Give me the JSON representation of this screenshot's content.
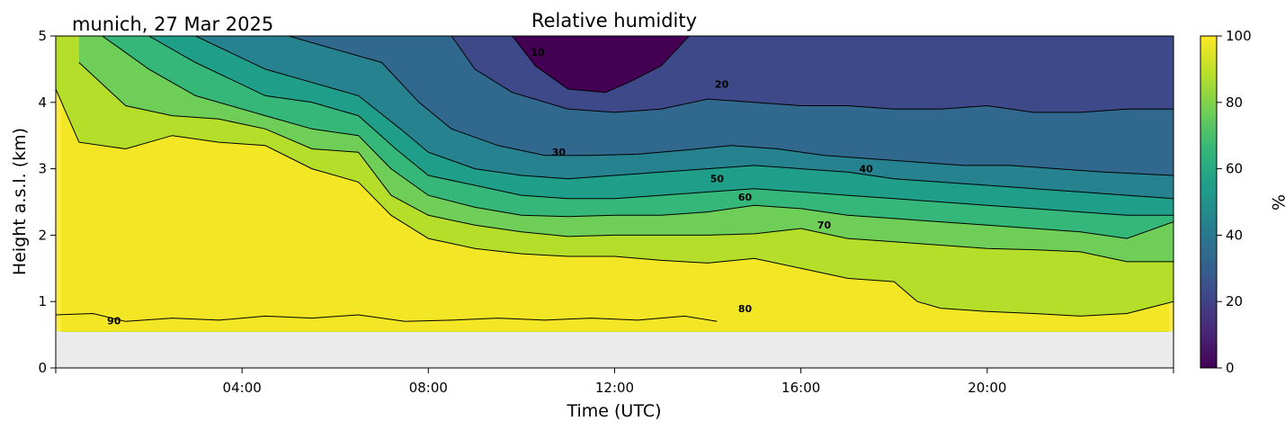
{
  "chart_data": {
    "type": "heatmap",
    "title": "Relative humidity",
    "subtitle": "munich, 27 Mar 2025",
    "xlabel": "Time (UTC)",
    "ylabel": "Height a.s.l. (km)",
    "xlim_hours": [
      0,
      24
    ],
    "ylim": [
      0,
      5
    ],
    "x_ticks": [
      "04:00",
      "08:00",
      "12:00",
      "16:00",
      "20:00"
    ],
    "x_tick_hours": [
      4,
      8,
      12,
      16,
      20
    ],
    "y_ticks": [
      "0",
      "1",
      "2",
      "3",
      "4",
      "5"
    ],
    "no_data_below_km": 0.55,
    "colorbar": {
      "label": "%",
      "range": [
        0,
        100
      ],
      "ticks": [
        "0",
        "20",
        "40",
        "60",
        "80",
        "100"
      ],
      "colormap": [
        "#440154",
        "#482878",
        "#3e4989",
        "#31688e",
        "#26828e",
        "#1f9e89",
        "#35b779",
        "#6ece58",
        "#b5de2b",
        "#fde725"
      ]
    },
    "contour_levels": [
      10,
      20,
      30,
      40,
      50,
      60,
      70,
      80,
      90
    ],
    "contours": [
      {
        "level": 90,
        "points": [
          [
            0,
            0.8
          ],
          [
            0.8,
            0.82
          ],
          [
            1.5,
            0.7
          ],
          [
            2.5,
            0.75
          ],
          [
            3.5,
            0.72
          ],
          [
            4.5,
            0.78
          ],
          [
            5.5,
            0.75
          ],
          [
            6.5,
            0.8
          ],
          [
            7.5,
            0.7
          ],
          [
            8.5,
            0.72
          ],
          [
            9.5,
            0.75
          ],
          [
            10.5,
            0.72
          ],
          [
            11.5,
            0.75
          ],
          [
            12.5,
            0.72
          ],
          [
            13.5,
            0.78
          ],
          [
            14.2,
            0.7
          ]
        ]
      },
      {
        "level": 80,
        "points": [
          [
            0,
            4.2
          ],
          [
            0.5,
            3.4
          ],
          [
            1.5,
            3.3
          ],
          [
            2.5,
            3.5
          ],
          [
            3.5,
            3.4
          ],
          [
            4.5,
            3.35
          ],
          [
            5.5,
            3.0
          ],
          [
            6.5,
            2.8
          ],
          [
            7.2,
            2.3
          ],
          [
            8.0,
            1.95
          ],
          [
            9.0,
            1.8
          ],
          [
            10.0,
            1.72
          ],
          [
            11.0,
            1.68
          ],
          [
            12.0,
            1.68
          ],
          [
            13.0,
            1.62
          ],
          [
            14.0,
            1.58
          ],
          [
            15.0,
            1.65
          ],
          [
            16.0,
            1.5
          ],
          [
            17.0,
            1.35
          ],
          [
            18.0,
            1.3
          ],
          [
            18.5,
            1.0
          ],
          [
            19.0,
            0.9
          ],
          [
            20.0,
            0.85
          ],
          [
            21.0,
            0.82
          ],
          [
            22.0,
            0.78
          ],
          [
            23.0,
            0.82
          ],
          [
            24.0,
            1.0
          ]
        ]
      },
      {
        "level": 70,
        "points": [
          [
            0.5,
            4.6
          ],
          [
            1.5,
            3.95
          ],
          [
            2.5,
            3.8
          ],
          [
            3.5,
            3.75
          ],
          [
            4.5,
            3.6
          ],
          [
            5.5,
            3.3
          ],
          [
            6.5,
            3.25
          ],
          [
            7.2,
            2.6
          ],
          [
            8.0,
            2.3
          ],
          [
            9.0,
            2.15
          ],
          [
            10.0,
            2.05
          ],
          [
            11.0,
            1.98
          ],
          [
            12.0,
            2.0
          ],
          [
            13.0,
            2.0
          ],
          [
            14.0,
            2.0
          ],
          [
            15.0,
            2.02
          ],
          [
            16.0,
            2.1
          ],
          [
            17.0,
            1.95
          ],
          [
            18.0,
            1.9
          ],
          [
            19.0,
            1.85
          ],
          [
            20.0,
            1.8
          ],
          [
            21.0,
            1.78
          ],
          [
            22.0,
            1.75
          ],
          [
            23.0,
            1.6
          ],
          [
            24.0,
            1.6
          ]
        ]
      },
      {
        "level": 60,
        "points": [
          [
            1.0,
            5.0
          ],
          [
            2.0,
            4.5
          ],
          [
            3.0,
            4.1
          ],
          [
            4.5,
            3.8
          ],
          [
            5.5,
            3.6
          ],
          [
            6.5,
            3.5
          ],
          [
            7.2,
            3.0
          ],
          [
            8.0,
            2.6
          ],
          [
            9.0,
            2.42
          ],
          [
            10.0,
            2.3
          ],
          [
            11.0,
            2.28
          ],
          [
            12.0,
            2.3
          ],
          [
            13.0,
            2.3
          ],
          [
            14.0,
            2.35
          ],
          [
            15.0,
            2.45
          ],
          [
            16.0,
            2.4
          ],
          [
            17.0,
            2.3
          ],
          [
            18.0,
            2.25
          ],
          [
            19.0,
            2.2
          ],
          [
            20.0,
            2.15
          ],
          [
            21.0,
            2.1
          ],
          [
            22.0,
            2.05
          ],
          [
            23.0,
            1.95
          ],
          [
            24.0,
            2.2
          ]
        ]
      },
      {
        "level": 50,
        "points": [
          [
            2.0,
            5.0
          ],
          [
            3.0,
            4.6
          ],
          [
            4.5,
            4.1
          ],
          [
            5.5,
            4.0
          ],
          [
            6.5,
            3.8
          ],
          [
            7.3,
            3.3
          ],
          [
            8.0,
            2.9
          ],
          [
            9.0,
            2.75
          ],
          [
            10.0,
            2.6
          ],
          [
            11.0,
            2.55
          ],
          [
            12.0,
            2.55
          ],
          [
            13.0,
            2.6
          ],
          [
            14.0,
            2.65
          ],
          [
            15.0,
            2.7
          ],
          [
            16.0,
            2.65
          ],
          [
            17.0,
            2.6
          ],
          [
            18.0,
            2.55
          ],
          [
            19.0,
            2.5
          ],
          [
            20.0,
            2.45
          ],
          [
            21.0,
            2.4
          ],
          [
            22.0,
            2.35
          ],
          [
            23.0,
            2.3
          ],
          [
            24.0,
            2.3
          ]
        ]
      },
      {
        "level": 40,
        "points": [
          [
            3.0,
            5.0
          ],
          [
            4.5,
            4.5
          ],
          [
            5.5,
            4.3
          ],
          [
            6.5,
            4.1
          ],
          [
            7.4,
            3.6
          ],
          [
            8.0,
            3.25
          ],
          [
            9.0,
            3.0
          ],
          [
            10.0,
            2.9
          ],
          [
            11.0,
            2.85
          ],
          [
            12.0,
            2.9
          ],
          [
            13.0,
            2.95
          ],
          [
            14.0,
            3.0
          ],
          [
            15.0,
            3.05
          ],
          [
            16.0,
            3.0
          ],
          [
            17.0,
            2.95
          ],
          [
            18.0,
            2.85
          ],
          [
            19.0,
            2.8
          ],
          [
            20.0,
            2.75
          ],
          [
            21.0,
            2.7
          ],
          [
            22.0,
            2.65
          ],
          [
            23.0,
            2.6
          ],
          [
            24.0,
            2.55
          ]
        ]
      },
      {
        "level": 30,
        "points": [
          [
            5.0,
            5.0
          ],
          [
            6.0,
            4.8
          ],
          [
            7.0,
            4.6
          ],
          [
            7.8,
            4.0
          ],
          [
            8.5,
            3.6
          ],
          [
            9.5,
            3.35
          ],
          [
            10.5,
            3.2
          ],
          [
            11.5,
            3.2
          ],
          [
            12.5,
            3.22
          ],
          [
            13.5,
            3.28
          ],
          [
            14.5,
            3.35
          ],
          [
            15.5,
            3.3
          ],
          [
            16.5,
            3.2
          ],
          [
            17.5,
            3.15
          ],
          [
            18.5,
            3.1
          ],
          [
            19.5,
            3.05
          ],
          [
            20.5,
            3.05
          ],
          [
            21.5,
            3.0
          ],
          [
            22.5,
            2.95
          ],
          [
            24.0,
            2.9
          ]
        ]
      },
      {
        "level": 20,
        "points": [
          [
            8.5,
            5.0
          ],
          [
            9.0,
            4.5
          ],
          [
            9.8,
            4.15
          ],
          [
            11.0,
            3.9
          ],
          [
            12.0,
            3.85
          ],
          [
            13.0,
            3.9
          ],
          [
            14.0,
            4.05
          ],
          [
            15.0,
            4.0
          ],
          [
            16.0,
            3.95
          ],
          [
            17.0,
            3.95
          ],
          [
            18.0,
            3.9
          ],
          [
            19.0,
            3.9
          ],
          [
            20.0,
            3.95
          ],
          [
            21.0,
            3.85
          ],
          [
            22.0,
            3.85
          ],
          [
            23.0,
            3.9
          ],
          [
            24.0,
            3.9
          ]
        ]
      },
      {
        "level": 10,
        "points": [
          [
            9.8,
            5.0
          ],
          [
            10.3,
            4.55
          ],
          [
            11.0,
            4.2
          ],
          [
            11.8,
            4.15
          ],
          [
            12.3,
            4.3
          ],
          [
            13.0,
            4.55
          ],
          [
            13.6,
            5.0
          ]
        ]
      }
    ],
    "contour_label_positions": [
      {
        "text": "90",
        "x": 1.25,
        "y": 0.66
      },
      {
        "text": "80",
        "x": 14.8,
        "y": 0.84
      },
      {
        "text": "70",
        "x": 16.5,
        "y": 2.1
      },
      {
        "text": "60",
        "x": 14.8,
        "y": 2.52
      },
      {
        "text": "50",
        "x": 14.2,
        "y": 2.8
      },
      {
        "text": "40",
        "x": 17.4,
        "y": 2.95
      },
      {
        "text": "30",
        "x": 10.8,
        "y": 3.2
      },
      {
        "text": "20",
        "x": 14.3,
        "y": 4.22
      },
      {
        "text": "10",
        "x": 10.35,
        "y": 4.7
      }
    ]
  }
}
